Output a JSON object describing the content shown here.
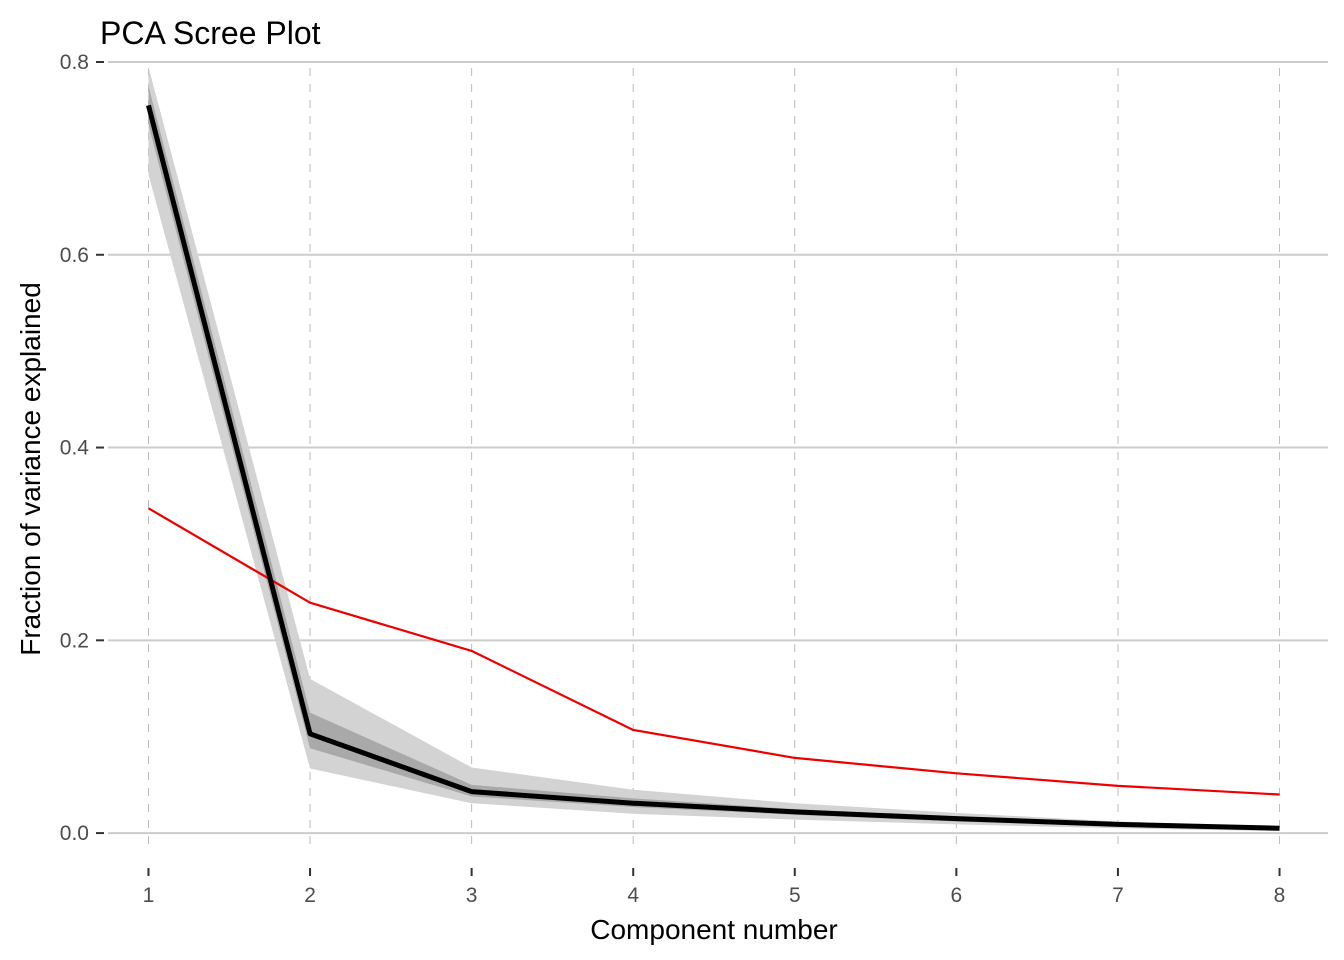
{
  "chart_data": {
    "type": "line",
    "title": "PCA Scree Plot",
    "xlabel": "Component number",
    "ylabel": "Fraction of variance explained",
    "x": [
      1,
      2,
      3,
      4,
      5,
      6,
      7,
      8
    ],
    "xlim": [
      0.7,
      8.3
    ],
    "ylim": [
      -0.03,
      0.8
    ],
    "x_ticks": [
      "1",
      "2",
      "3",
      "4",
      "5",
      "6",
      "7",
      "8"
    ],
    "y_ticks": [
      "0.0",
      "0.2",
      "0.4",
      "0.6",
      "0.8"
    ],
    "grid": {
      "horizontal": "solid",
      "vertical": "dashed"
    },
    "series": [
      {
        "type": "line",
        "color": "#000000",
        "values": [
          0.755,
          0.103,
          0.043,
          0.031,
          0.022,
          0.015,
          0.009,
          0.005
        ]
      },
      {
        "type": "line",
        "color": "#ee0000",
        "values": [
          0.337,
          0.239,
          0.189,
          0.107,
          0.078,
          0.062,
          0.049,
          0.04
        ]
      }
    ],
    "bands": [
      {
        "color": "#d3d3d3",
        "upper": [
          0.795,
          0.16,
          0.068,
          0.045,
          0.031,
          0.021,
          0.012,
          0.007
        ],
        "lower": [
          0.683,
          0.067,
          0.031,
          0.02,
          0.014,
          0.009,
          0.005,
          0.002
        ]
      },
      {
        "color": "#a9a9a9",
        "upper": [
          0.775,
          0.125,
          0.05,
          0.036,
          0.025,
          0.017,
          0.01,
          0.006
        ],
        "lower": [
          0.735,
          0.088,
          0.038,
          0.027,
          0.019,
          0.012,
          0.007,
          0.004
        ]
      }
    ]
  }
}
